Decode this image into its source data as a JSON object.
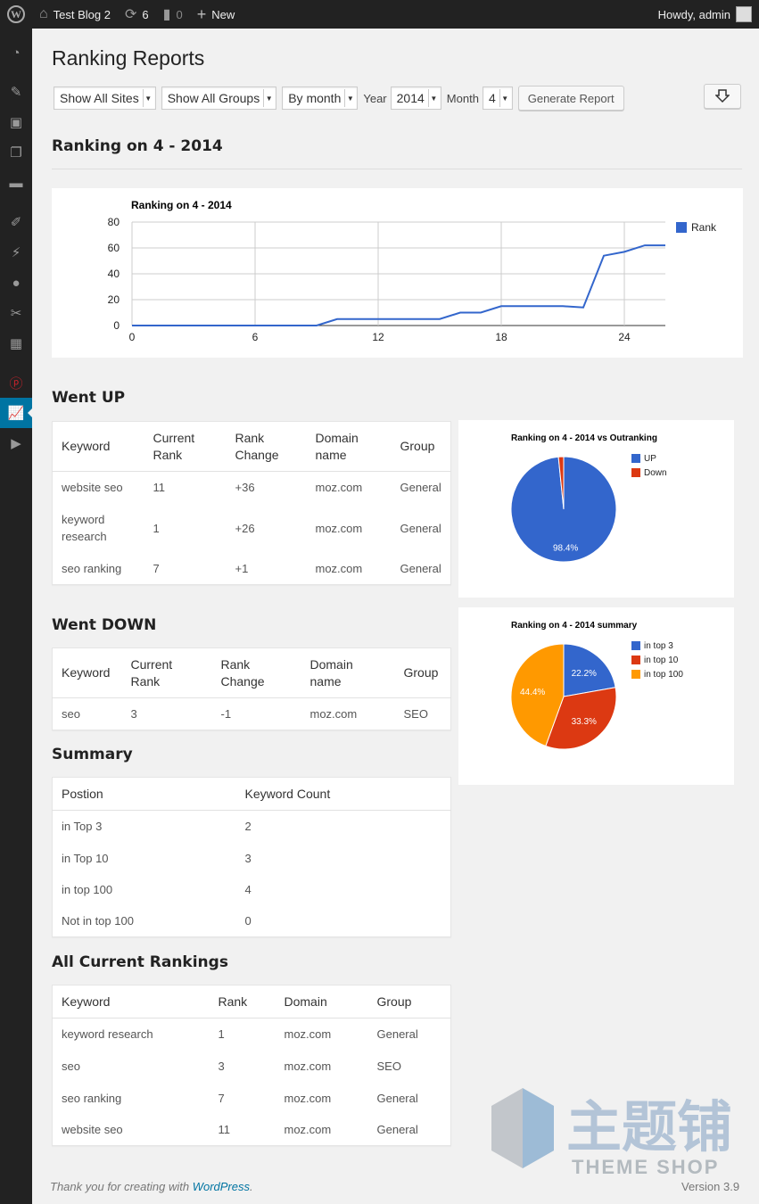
{
  "adminbar": {
    "site_name": "Test Blog 2",
    "updates_count": "6",
    "comments_count": "0",
    "new_label": "New",
    "howdy": "Howdy, admin"
  },
  "page": {
    "title": "Ranking Reports",
    "filters": {
      "sites": "Show All Sites",
      "groups": "Show All Groups",
      "period": "By month",
      "year_label": "Year",
      "year": "2014",
      "month_label": "Month",
      "month": "4",
      "generate_label": "Generate Report"
    },
    "section_heading": "Ranking on 4 - 2014"
  },
  "chart_data": [
    {
      "type": "line",
      "title": "Ranking on 4 - 2014",
      "x": [
        0,
        1,
        2,
        3,
        4,
        5,
        6,
        7,
        8,
        9,
        10,
        11,
        12,
        13,
        14,
        15,
        16,
        17,
        18,
        19,
        20,
        21,
        22,
        23,
        24,
        25,
        26
      ],
      "series": [
        {
          "name": "Rank",
          "values": [
            0,
            0,
            0,
            0,
            0,
            0,
            0,
            0,
            0,
            0,
            5,
            5,
            5,
            5,
            5,
            5,
            10,
            10,
            15,
            15,
            15,
            15,
            14,
            54,
            57,
            62,
            62
          ]
        }
      ],
      "xticks": [
        0,
        6,
        12,
        18,
        24
      ],
      "yticks": [
        0,
        20,
        40,
        60,
        80
      ],
      "xlim": [
        0,
        26
      ],
      "ylim": [
        0,
        80
      ],
      "grid": true,
      "legend": "right",
      "color": "#3366cc"
    },
    {
      "type": "pie",
      "title": "Ranking on 4 - 2014 vs Outranking",
      "labels": [
        "UP",
        "Down"
      ],
      "values": [
        98.4,
        1.6
      ],
      "slice_labels": [
        "98.4%",
        ""
      ],
      "colors": [
        "#3366cc",
        "#dc3912"
      ],
      "legend": "right"
    },
    {
      "type": "pie",
      "title": "Ranking on 4 - 2014 summary",
      "labels": [
        "in top 3",
        "in top 10",
        "in top 100"
      ],
      "values": [
        22.2,
        33.3,
        44.4
      ],
      "slice_labels": [
        "22.2%",
        "33.3%",
        "44.4%"
      ],
      "colors": [
        "#3366cc",
        "#dc3912",
        "#ff9900"
      ],
      "legend": "right"
    }
  ],
  "went_up": {
    "heading": "Went UP",
    "headers": [
      "Keyword",
      "Current Rank",
      "Rank Change",
      "Domain name",
      "Group"
    ],
    "rows": [
      [
        "website seo",
        "11",
        "+36",
        "moz.com",
        "General"
      ],
      [
        "keyword research",
        "1",
        "+26",
        "moz.com",
        "General"
      ],
      [
        "seo ranking",
        "7",
        "+1",
        "moz.com",
        "General"
      ]
    ]
  },
  "went_down": {
    "heading": "Went DOWN",
    "headers": [
      "Keyword",
      "Current Rank",
      "Rank Change",
      "Domain name",
      "Group"
    ],
    "rows": [
      [
        "seo",
        "3",
        "-1",
        "moz.com",
        "SEO"
      ]
    ]
  },
  "summary": {
    "heading": "Summary",
    "headers": [
      "Postion",
      "Keyword Count"
    ],
    "rows": [
      [
        "in Top 3",
        "2"
      ],
      [
        "in Top 10",
        "3"
      ],
      [
        "in top 100",
        "4"
      ],
      [
        "Not in top 100",
        "0"
      ]
    ]
  },
  "all_rankings": {
    "heading": "All Current Rankings",
    "headers": [
      "Keyword",
      "Rank",
      "Domain",
      "Group"
    ],
    "rows": [
      [
        "keyword research",
        "1",
        "moz.com",
        "General"
      ],
      [
        "seo",
        "3",
        "moz.com",
        "SEO"
      ],
      [
        "seo ranking",
        "7",
        "moz.com",
        "General"
      ],
      [
        "website seo",
        "11",
        "moz.com",
        "General"
      ]
    ]
  },
  "footer": {
    "thanks_prefix": "Thank you for creating with ",
    "wordpress_link": "WordPress",
    "thanks_suffix": ".",
    "version": "Version 3.9"
  },
  "watermark": {
    "text_cn": "主题铺",
    "text_en": "THEME SHOP"
  }
}
